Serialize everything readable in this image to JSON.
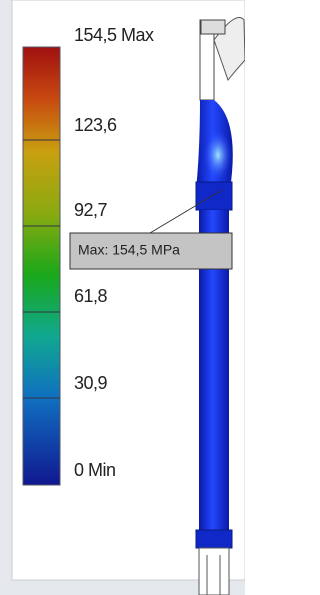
{
  "legend": {
    "labels": [
      "154,5 Max",
      "123,6",
      "92,7",
      "61,8",
      "30,9",
      "0 Min"
    ]
  },
  "callout": {
    "text": "Max: 154,5 MPa"
  }
}
